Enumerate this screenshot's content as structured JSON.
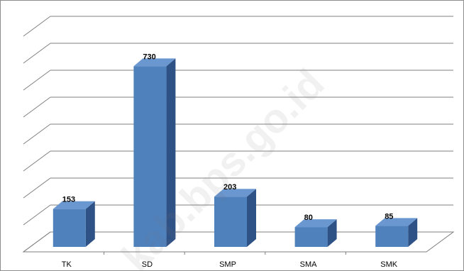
{
  "chart_data": {
    "type": "bar",
    "style": "3d-column",
    "categories": [
      "TK",
      "SD",
      "SMP",
      "SMA",
      "SMK"
    ],
    "values": [
      153,
      730,
      203,
      80,
      85
    ],
    "title": "",
    "xlabel": "",
    "ylabel": "",
    "ylim": [
      0,
      800
    ],
    "grid": true,
    "legend": "none",
    "bar_color": "#4F81BD",
    "bar_top_color": "#6A97D0",
    "bar_side_color": "#2F5286"
  },
  "watermark": "kab.bps.go.id"
}
